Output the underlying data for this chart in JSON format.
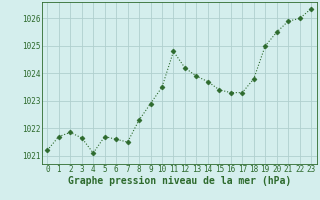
{
  "x": [
    0,
    1,
    2,
    3,
    4,
    5,
    6,
    7,
    8,
    9,
    10,
    11,
    12,
    13,
    14,
    15,
    16,
    17,
    18,
    19,
    20,
    21,
    22,
    23
  ],
  "y": [
    1021.2,
    1021.7,
    1021.85,
    1021.65,
    1021.1,
    1021.7,
    1021.6,
    1021.5,
    1022.3,
    1022.9,
    1023.5,
    1024.8,
    1024.2,
    1023.9,
    1023.7,
    1023.4,
    1023.3,
    1023.3,
    1023.8,
    1025.0,
    1025.5,
    1025.9,
    1026.0,
    1026.35
  ],
  "ylim": [
    1020.7,
    1026.6
  ],
  "yticks": [
    1021,
    1022,
    1023,
    1024,
    1025,
    1026
  ],
  "xticks": [
    0,
    1,
    2,
    3,
    4,
    5,
    6,
    7,
    8,
    9,
    10,
    11,
    12,
    13,
    14,
    15,
    16,
    17,
    18,
    19,
    20,
    21,
    22,
    23
  ],
  "xlabel": "Graphe pression niveau de la mer (hPa)",
  "line_color": "#2d6a2d",
  "marker": "D",
  "marker_size": 2.5,
  "bg_color": "#d4eeed",
  "grid_color": "#b0cfce",
  "tick_fontsize": 5.5,
  "xlabel_fontsize": 7.0
}
